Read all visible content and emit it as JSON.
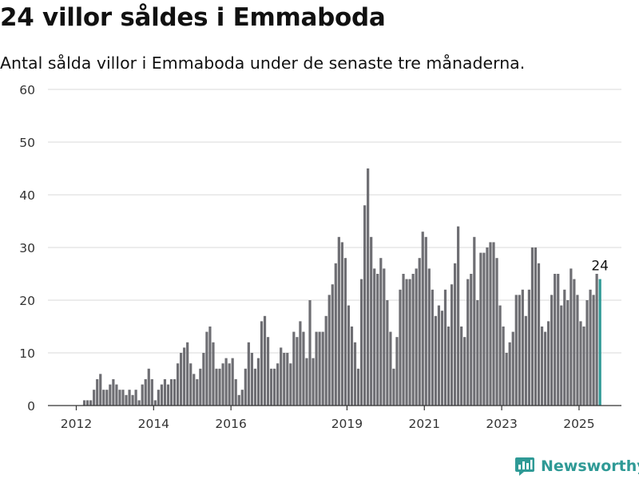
{
  "title": "24 villor såldes i Emmaboda",
  "subtitle": "Antal sålda villor i Emmaboda under de senaste tre månaderna.",
  "brand": {
    "name": "Newsworthy"
  },
  "colors": {
    "bar": "#6e6e73",
    "highlight": "#2f9a96",
    "grid": "#d9d9d9",
    "axis": "#333333",
    "text": "#333333"
  },
  "chart_data": {
    "type": "bar",
    "title": "24 villor såldes i Emmaboda",
    "subtitle": "Antal sålda villor i Emmaboda under de senaste tre månaderna.",
    "xlabel": "",
    "ylabel": "",
    "ylim": [
      0,
      60
    ],
    "yticks": [
      0,
      10,
      20,
      30,
      40,
      50,
      60
    ],
    "grid": true,
    "frequency": "monthly",
    "x_tick_labels": [
      {
        "label": "2012",
        "date": "2012-01"
      },
      {
        "label": "2014",
        "date": "2014-01"
      },
      {
        "label": "2016",
        "date": "2016-01"
      },
      {
        "label": "2019",
        "date": "2019-01"
      },
      {
        "label": "2021",
        "date": "2021-01"
      },
      {
        "label": "2023",
        "date": "2023-01"
      },
      {
        "label": "2025",
        "date": "2025-01"
      }
    ],
    "highlight": {
      "date": "2025-07",
      "value": 24,
      "label": "24"
    },
    "dates": [
      "2012-03",
      "2012-04",
      "2012-05",
      "2012-06",
      "2012-07",
      "2012-08",
      "2012-09",
      "2012-10",
      "2012-11",
      "2012-12",
      "2013-01",
      "2013-02",
      "2013-03",
      "2013-04",
      "2013-05",
      "2013-06",
      "2013-07",
      "2013-08",
      "2013-09",
      "2013-10",
      "2013-11",
      "2013-12",
      "2014-01",
      "2014-02",
      "2014-03",
      "2014-04",
      "2014-05",
      "2014-06",
      "2014-07",
      "2014-08",
      "2014-09",
      "2014-10",
      "2014-11",
      "2014-12",
      "2015-01",
      "2015-02",
      "2015-03",
      "2015-04",
      "2015-05",
      "2015-06",
      "2015-07",
      "2015-08",
      "2015-09",
      "2015-10",
      "2015-11",
      "2015-12",
      "2016-01",
      "2016-02",
      "2016-03",
      "2016-04",
      "2016-05",
      "2016-06",
      "2016-07",
      "2016-08",
      "2016-09",
      "2016-10",
      "2016-11",
      "2016-12",
      "2017-01",
      "2017-02",
      "2017-03",
      "2017-04",
      "2017-05",
      "2017-06",
      "2017-07",
      "2017-08",
      "2017-09",
      "2017-10",
      "2017-11",
      "2017-12",
      "2018-01",
      "2018-02",
      "2018-03",
      "2018-04",
      "2018-05",
      "2018-06",
      "2018-07",
      "2018-08",
      "2018-09",
      "2018-10",
      "2018-11",
      "2018-12",
      "2019-01",
      "2019-02",
      "2019-03",
      "2019-04",
      "2019-05",
      "2019-06",
      "2019-07",
      "2019-08",
      "2019-09",
      "2019-10",
      "2019-11",
      "2019-12",
      "2020-01",
      "2020-02",
      "2020-03",
      "2020-04",
      "2020-05",
      "2020-06",
      "2020-07",
      "2020-08",
      "2020-09",
      "2020-10",
      "2020-11",
      "2020-12",
      "2021-01",
      "2021-02",
      "2021-03",
      "2021-04",
      "2021-05",
      "2021-06",
      "2021-07",
      "2021-08",
      "2021-09",
      "2021-10",
      "2021-11",
      "2021-12",
      "2022-01",
      "2022-02",
      "2022-03",
      "2022-04",
      "2022-05",
      "2022-06",
      "2022-07",
      "2022-08",
      "2022-09",
      "2022-10",
      "2022-11",
      "2022-12",
      "2023-01",
      "2023-02",
      "2023-03",
      "2023-04",
      "2023-05",
      "2023-06",
      "2023-07",
      "2023-08",
      "2023-09",
      "2023-10",
      "2023-11",
      "2023-12",
      "2024-01",
      "2024-02",
      "2024-03",
      "2024-04",
      "2024-05",
      "2024-06",
      "2024-07",
      "2024-08",
      "2024-09",
      "2024-10",
      "2024-11",
      "2024-12",
      "2025-01",
      "2025-02",
      "2025-03",
      "2025-04",
      "2025-05",
      "2025-06",
      "2025-07"
    ],
    "values": [
      1,
      1,
      1,
      3,
      5,
      6,
      3,
      3,
      4,
      5,
      4,
      3,
      3,
      2,
      3,
      2,
      3,
      1,
      4,
      5,
      7,
      5,
      1,
      3,
      4,
      5,
      4,
      5,
      5,
      8,
      10,
      11,
      12,
      8,
      6,
      5,
      7,
      10,
      14,
      15,
      12,
      7,
      7,
      8,
      9,
      8,
      9,
      5,
      2,
      3,
      7,
      12,
      10,
      7,
      9,
      16,
      17,
      13,
      7,
      7,
      8,
      11,
      10,
      10,
      8,
      14,
      13,
      16,
      14,
      9,
      20,
      9,
      14,
      14,
      14,
      17,
      21,
      23,
      27,
      32,
      31,
      28,
      19,
      15,
      12,
      7,
      24,
      38,
      45,
      32,
      26,
      25,
      28,
      26,
      20,
      14,
      7,
      13,
      22,
      25,
      24,
      24,
      25,
      26,
      28,
      33,
      32,
      26,
      22,
      17,
      19,
      18,
      22,
      15,
      23,
      27,
      34,
      15,
      13,
      24,
      25,
      32,
      20,
      29,
      29,
      30,
      31,
      31,
      28,
      19,
      15,
      10,
      12,
      14,
      21,
      21,
      22,
      17,
      22,
      30,
      30,
      27,
      15,
      14,
      16,
      21,
      25,
      25,
      19,
      22,
      20,
      26,
      24,
      21,
      16,
      15,
      20,
      22,
      21,
      25,
      24
    ]
  }
}
